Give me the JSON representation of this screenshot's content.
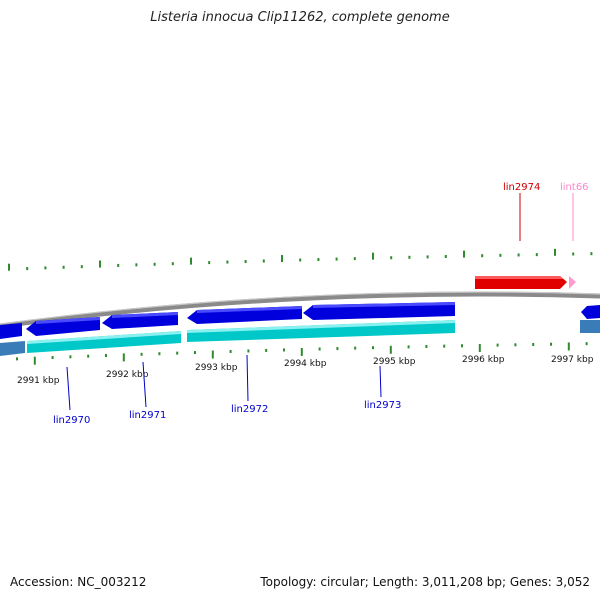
{
  "title": "Listeria innocua Clip11262, complete genome",
  "footer": {
    "accession": "Accession: NC_003212",
    "summary": "Topology: circular; Length: 3,011,208 bp; Genes: 3,052"
  },
  "colors": {
    "backbone": "#8a8a8a",
    "forward_gene": "#e00000",
    "pseudo_gene": "#ff9ad0",
    "reverse_gene": "#0000dd",
    "cds_track": "#00c8c8",
    "gc_ticks": "#2e8b2e",
    "blue_label": "#0000cc",
    "red_label": "#cc0000",
    "pink_label": "#ff88cc"
  },
  "ticks": [
    {
      "label": "2991 kbp"
    },
    {
      "label": "2992 kbp"
    },
    {
      "label": "2993 kbp"
    },
    {
      "label": "2994 kbp"
    },
    {
      "label": "2995 kbp"
    },
    {
      "label": "2996 kbp"
    },
    {
      "label": "2997 kbp"
    }
  ],
  "genes": [
    {
      "label": "lin2970",
      "strand": "reverse"
    },
    {
      "label": "lin2971",
      "strand": "reverse"
    },
    {
      "label": "lin2972",
      "strand": "reverse"
    },
    {
      "label": "lin2973",
      "strand": "reverse"
    },
    {
      "label": "lin2974",
      "strand": "forward"
    },
    {
      "label": "lint66",
      "strand": "forward-pseudo"
    }
  ]
}
